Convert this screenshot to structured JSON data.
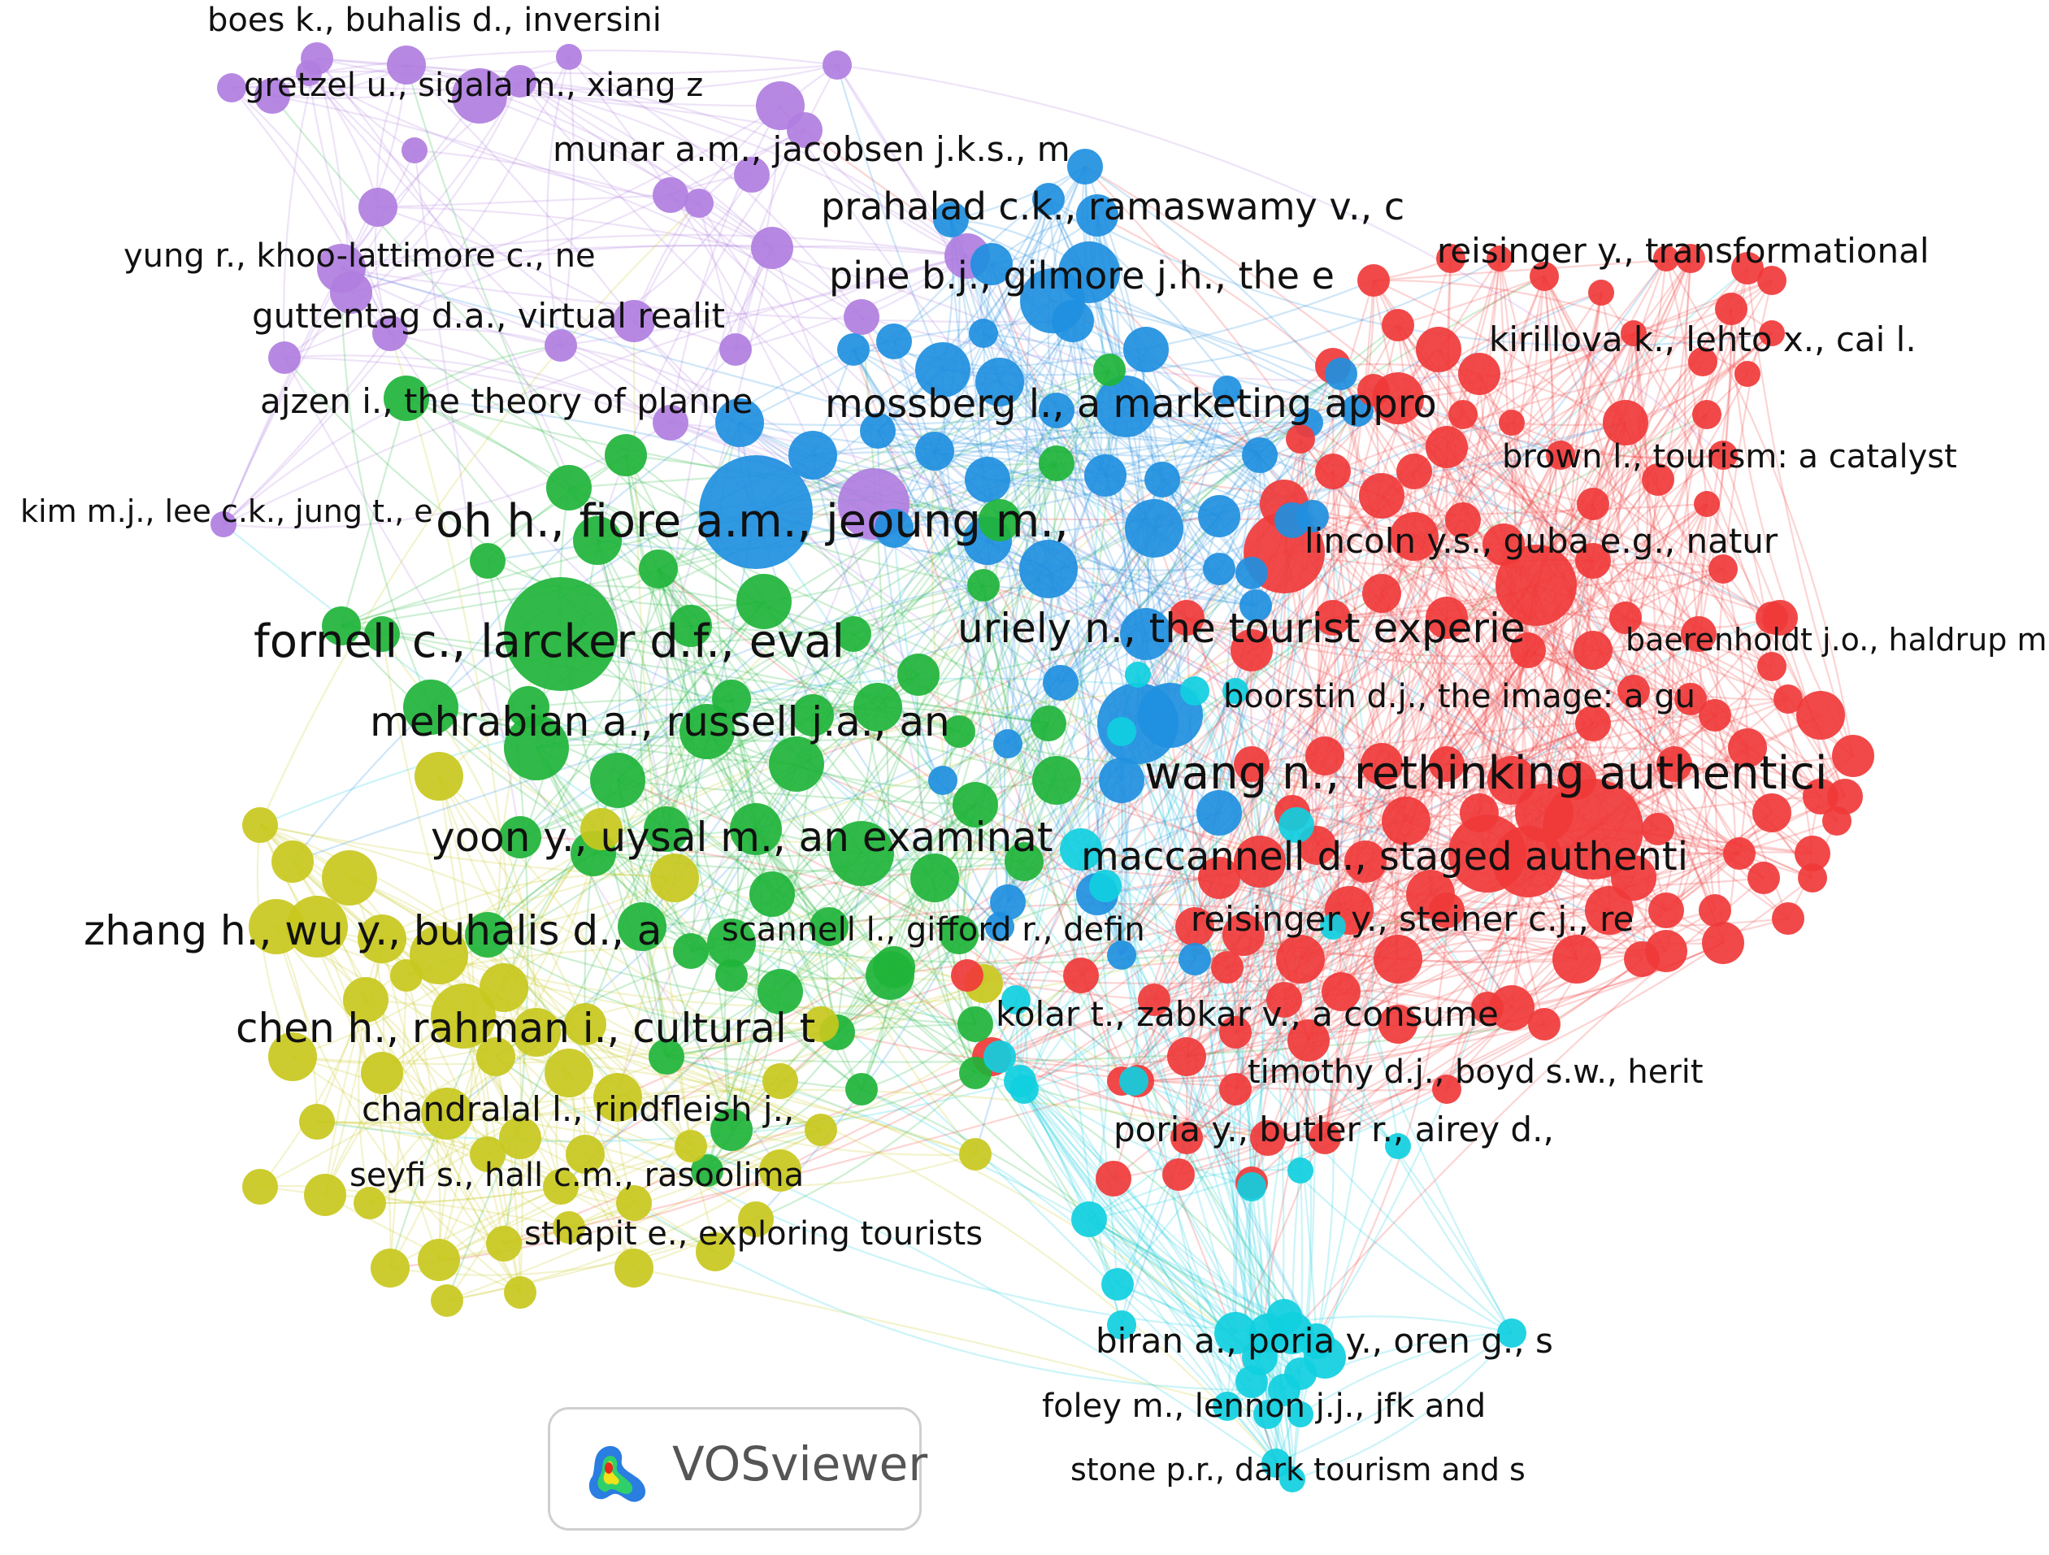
{
  "clusters": {
    "red": "#f03a3a",
    "green": "#1fb43a",
    "blue": "#1f8fdf",
    "yellow": "#c8c81e",
    "purple": "#b07ee0",
    "cyan": "#10cfe0"
  },
  "labels": [
    {
      "text": "boes k., buhalis d., inversini",
      "cluster": "purple"
    },
    {
      "text": "gretzel u., sigala m., xiang z",
      "cluster": "purple"
    },
    {
      "text": "munar a.m., jacobsen j.k.s., m",
      "cluster": "purple"
    },
    {
      "text": "prahalad c.k., ramaswamy v., c",
      "cluster": "blue"
    },
    {
      "text": "yung r., khoo-lattimore c., ne",
      "cluster": "purple"
    },
    {
      "text": "pine b.j., gilmore j.h., the e",
      "cluster": "blue"
    },
    {
      "text": "reisinger y., transformational",
      "cluster": "red"
    },
    {
      "text": "guttentag d.a., virtual realit",
      "cluster": "purple"
    },
    {
      "text": "kirillova k., lehto x., cai l.",
      "cluster": "red"
    },
    {
      "text": "ajzen i., the theory of planne",
      "cluster": "green"
    },
    {
      "text": "mossberg l., a marketing appro",
      "cluster": "blue"
    },
    {
      "text": "brown l., tourism: a catalyst",
      "cluster": "red"
    },
    {
      "text": "kim m.j., lee c.k., jung t., e",
      "cluster": "purple"
    },
    {
      "text": "oh h., fiore a.m., jeoung m.,",
      "cluster": "blue"
    },
    {
      "text": "lincoln y.s., guba e.g., natur",
      "cluster": "red"
    },
    {
      "text": "fornell c., larcker d.f., eval",
      "cluster": "green"
    },
    {
      "text": "uriely n., the tourist experie",
      "cluster": "blue"
    },
    {
      "text": "baerenholdt j.o., haldrup m.,",
      "cluster": "red"
    },
    {
      "text": "boorstin d.j., the image: a gu",
      "cluster": "red"
    },
    {
      "text": "mehrabian a., russell j.a., an",
      "cluster": "green"
    },
    {
      "text": "wang n., rethinking authentici",
      "cluster": "red"
    },
    {
      "text": "yoon y., uysal m., an examinat",
      "cluster": "green"
    },
    {
      "text": "maccannell d., staged authenti",
      "cluster": "red"
    },
    {
      "text": "zhang h., wu y., buhalis d., a",
      "cluster": "yellow"
    },
    {
      "text": "scannell l., gifford r., defin",
      "cluster": "green"
    },
    {
      "text": "reisinger y., steiner c.j., re",
      "cluster": "red"
    },
    {
      "text": "kolar t., zabkar v., a consume",
      "cluster": "red"
    },
    {
      "text": "chen h., rahman i., cultural t",
      "cluster": "yellow"
    },
    {
      "text": "timothy d.j., boyd s.w., herit",
      "cluster": "red"
    },
    {
      "text": "chandralal l., rindfleish j.,",
      "cluster": "yellow"
    },
    {
      "text": "poria y., butler r., airey d.,",
      "cluster": "red"
    },
    {
      "text": "seyfi s., hall c.m., rasoolima",
      "cluster": "yellow"
    },
    {
      "text": "sthapit e., exploring tourists",
      "cluster": "yellow"
    },
    {
      "text": "biran a., poria y., oren g., s",
      "cluster": "cyan"
    },
    {
      "text": "foley m., lennon j.j., jfk and",
      "cluster": "cyan"
    },
    {
      "text": "stone p.r., dark tourism and s",
      "cluster": "cyan"
    }
  ],
  "watermark": {
    "text": "VOSviewer"
  }
}
